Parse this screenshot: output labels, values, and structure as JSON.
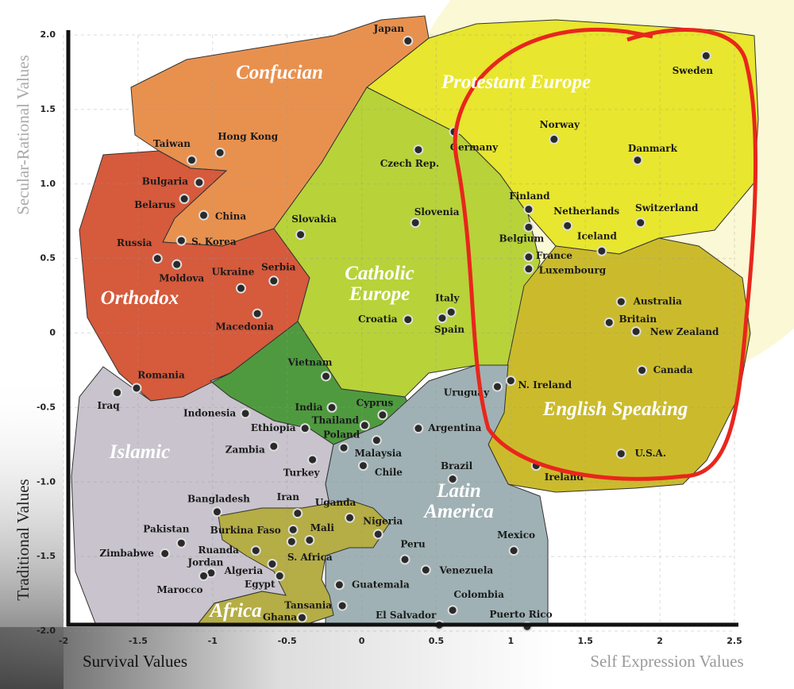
{
  "chart_data": {
    "type": "scatter",
    "xlabel_left": "Survival Values",
    "xlabel_right": "Self Expression Values",
    "ylabel_top": "Secular-Rational Values",
    "ylabel_bottom": "Traditional Values",
    "xlim": [
      -2,
      2.5
    ],
    "ylim": [
      -2,
      2
    ],
    "xticks": [
      -2,
      -1.5,
      -1,
      -0.5,
      0,
      0.5,
      1,
      1.5,
      2,
      2.5
    ],
    "yticks": [
      {
        "value": 2,
        "label": "2.0"
      },
      1.5,
      {
        "value": 1,
        "label": "1.0"
      },
      0.5,
      0,
      -0.5,
      {
        "value": -1,
        "label": "-1.0"
      },
      -1.5,
      {
        "value": -2,
        "label": "-2.0"
      }
    ],
    "grid": true,
    "regions": [
      "Confucian",
      "Protestant Europe",
      "Orthodox",
      "Catholic Europe",
      "English Speaking",
      "Islamic",
      "Latin America",
      "Africa"
    ],
    "points": [
      {
        "label": "Japan",
        "x": 0.31,
        "y": 1.96
      },
      {
        "label": "Sweden",
        "x": 2.31,
        "y": 1.86
      },
      {
        "label": "Germany",
        "x": 0.62,
        "y": 1.35
      },
      {
        "label": "Norway",
        "x": 1.29,
        "y": 1.3
      },
      {
        "label": "Danmark",
        "x": 1.85,
        "y": 1.16
      },
      {
        "label": "Czech Rep.",
        "x": 0.38,
        "y": 1.23
      },
      {
        "label": "Taiwan",
        "x": -1.14,
        "y": 1.16
      },
      {
        "label": "Hong Kong",
        "x": -0.95,
        "y": 1.21
      },
      {
        "label": "Bulgaria",
        "x": -1.09,
        "y": 1.01
      },
      {
        "label": "Belarus",
        "x": -1.19,
        "y": 0.9
      },
      {
        "label": "China",
        "x": -1.06,
        "y": 0.79
      },
      {
        "label": "S. Korea",
        "x": -1.21,
        "y": 0.62
      },
      {
        "label": "Russia",
        "x": -1.37,
        "y": 0.5
      },
      {
        "label": "Moldova",
        "x": -1.24,
        "y": 0.46
      },
      {
        "label": "Slovakia",
        "x": -0.41,
        "y": 0.66
      },
      {
        "label": "Slovenia",
        "x": 0.36,
        "y": 0.74
      },
      {
        "label": "Finland",
        "x": 1.12,
        "y": 0.83
      },
      {
        "label": "Netherlands",
        "x": 1.38,
        "y": 0.72
      },
      {
        "label": "Switzerland",
        "x": 1.87,
        "y": 0.74
      },
      {
        "label": "Belgium",
        "x": 1.12,
        "y": 0.71
      },
      {
        "label": "Iceland",
        "x": 1.61,
        "y": 0.55
      },
      {
        "label": "France",
        "x": 1.12,
        "y": 0.51
      },
      {
        "label": "Luxembourg",
        "x": 1.12,
        "y": 0.43
      },
      {
        "label": "Ukraine",
        "x": -0.81,
        "y": 0.3
      },
      {
        "label": "Serbia",
        "x": -0.59,
        "y": 0.35
      },
      {
        "label": "Macedonia",
        "x": -0.7,
        "y": 0.13
      },
      {
        "label": "Italy",
        "x": 0.6,
        "y": 0.14
      },
      {
        "label": "Croatia",
        "x": 0.31,
        "y": 0.09
      },
      {
        "label": "Spain",
        "x": 0.54,
        "y": 0.1
      },
      {
        "label": "Australia",
        "x": 1.74,
        "y": 0.21
      },
      {
        "label": "Britain",
        "x": 1.66,
        "y": 0.07
      },
      {
        "label": "New Zealand",
        "x": 1.84,
        "y": 0.01
      },
      {
        "label": "Canada",
        "x": 1.88,
        "y": -0.25
      },
      {
        "label": "Vietnam",
        "x": -0.24,
        "y": -0.29
      },
      {
        "label": "Romania",
        "x": -1.51,
        "y": -0.37
      },
      {
        "label": "Iraq",
        "x": -1.64,
        "y": -0.4
      },
      {
        "label": "N. Ireland",
        "x": 1.0,
        "y": -0.32
      },
      {
        "label": "Uruguay",
        "x": 0.91,
        "y": -0.36
      },
      {
        "label": "Indonesia",
        "x": -0.78,
        "y": -0.54
      },
      {
        "label": "India",
        "x": -0.2,
        "y": -0.5
      },
      {
        "label": "Cyprus",
        "x": 0.14,
        "y": -0.55
      },
      {
        "label": "Thailand",
        "x": 0.02,
        "y": -0.62
      },
      {
        "label": "Ethiopia",
        "x": -0.38,
        "y": -0.64
      },
      {
        "label": "Poland",
        "x": -0.12,
        "y": -0.77
      },
      {
        "label": "Malaysia",
        "x": 0.1,
        "y": -0.72
      },
      {
        "label": "Argentina",
        "x": 0.38,
        "y": -0.64
      },
      {
        "label": "Zambia",
        "x": -0.59,
        "y": -0.76
      },
      {
        "label": "Turkey",
        "x": -0.33,
        "y": -0.85
      },
      {
        "label": "Chile",
        "x": 0.01,
        "y": -0.89
      },
      {
        "label": "Brazil",
        "x": 0.61,
        "y": -0.98
      },
      {
        "label": "U.S.A.",
        "x": 1.74,
        "y": -0.81
      },
      {
        "label": "Ireland",
        "x": 1.17,
        "y": -0.89
      },
      {
        "label": "Bangladesh",
        "x": -0.97,
        "y": -1.2
      },
      {
        "label": "Iran",
        "x": -0.43,
        "y": -1.21
      },
      {
        "label": "Uganda",
        "x": -0.08,
        "y": -1.24
      },
      {
        "label": "Nigeria",
        "x": 0.11,
        "y": -1.35
      },
      {
        "label": "Pakistan",
        "x": -1.21,
        "y": -1.41
      },
      {
        "label": "Burkina Faso",
        "x": -0.46,
        "y": -1.32
      },
      {
        "label": "Mali",
        "x": -0.35,
        "y": -1.39
      },
      {
        "label": "Zimbabwe",
        "x": -1.32,
        "y": -1.48
      },
      {
        "label": "Ruanda",
        "x": -0.71,
        "y": -1.46
      },
      {
        "label": "S. Africa",
        "x": -0.47,
        "y": -1.4
      },
      {
        "label": "Jordan",
        "x": -1.01,
        "y": -1.61
      },
      {
        "label": "Algeria",
        "x": -0.6,
        "y": -1.55
      },
      {
        "label": "Marocco",
        "x": -1.06,
        "y": -1.63
      },
      {
        "label": "Egypt",
        "x": -0.55,
        "y": -1.63
      },
      {
        "label": "Peru",
        "x": 0.29,
        "y": -1.52
      },
      {
        "label": "Mexico",
        "x": 1.02,
        "y": -1.46
      },
      {
        "label": "Venezuela",
        "x": 0.43,
        "y": -1.59
      },
      {
        "label": "Guatemala",
        "x": -0.15,
        "y": -1.69
      },
      {
        "label": "Tansania",
        "x": -0.13,
        "y": -1.83
      },
      {
        "label": "Ghana",
        "x": -0.4,
        "y": -1.91
      },
      {
        "label": "Colombia",
        "x": 0.61,
        "y": -1.86
      },
      {
        "label": "El Salvador",
        "x": 0.52,
        "y": -1.96
      },
      {
        "label": "Puerto Rico",
        "x": 1.11,
        "y": -1.97
      }
    ]
  }
}
